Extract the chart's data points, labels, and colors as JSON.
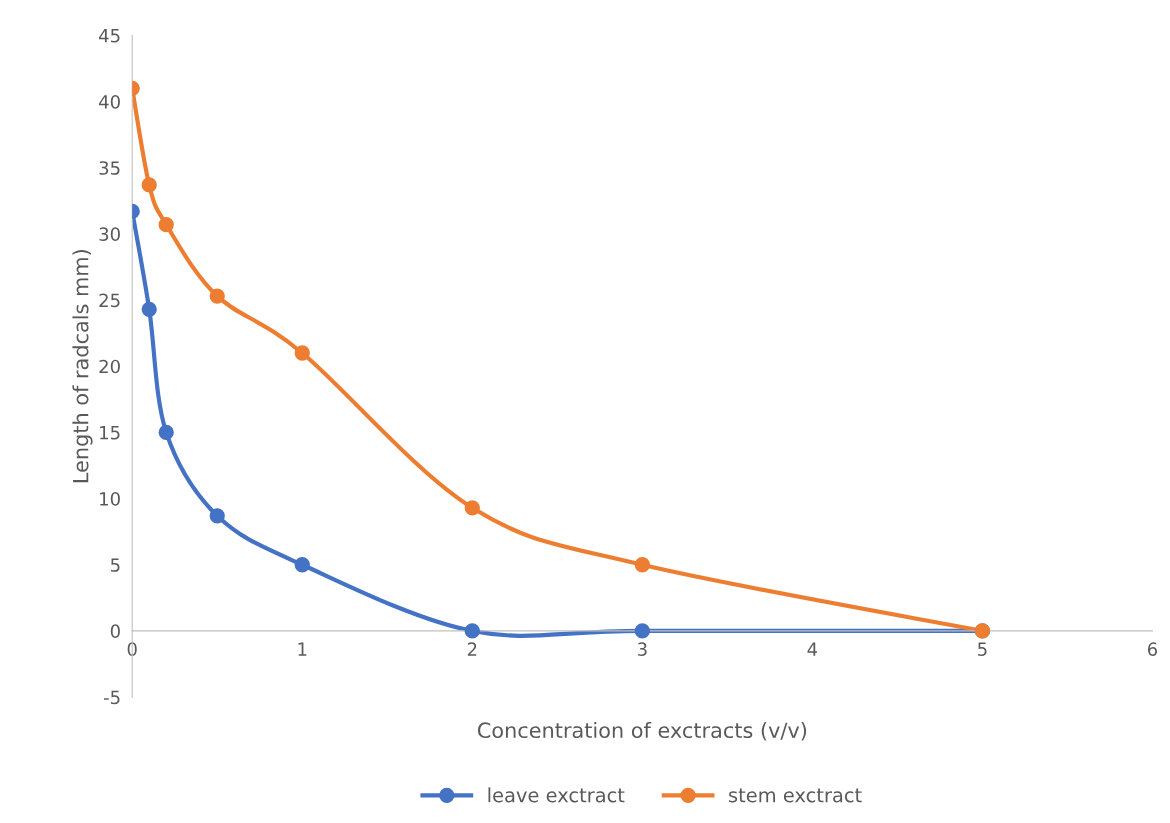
{
  "chart_data": {
    "type": "line",
    "xlabel": "Concentration of exctracts (v/v)",
    "ylabel": "Length of radcals mm)",
    "x": [
      0,
      0.1,
      0.2,
      0.5,
      1,
      2,
      3,
      5
    ],
    "series": [
      {
        "name": "leave exctract",
        "color": "#4472c4",
        "values": [
          31.7,
          24.3,
          15,
          8.7,
          5,
          0,
          0,
          0
        ]
      },
      {
        "name": "stem exctract",
        "color": "#ed7d31",
        "values": [
          41,
          33.7,
          30.7,
          25.3,
          21,
          9.3,
          5,
          0
        ]
      }
    ],
    "xlim": [
      0,
      6
    ],
    "xticks": [
      0,
      1,
      2,
      3,
      4,
      5,
      6
    ],
    "ylim": [
      -5,
      45
    ],
    "yticks": [
      -5,
      0,
      5,
      10,
      15,
      20,
      25,
      30,
      35,
      40,
      45
    ],
    "grid": false,
    "legend": "bottom",
    "marker": "circle",
    "line_style": "solid"
  }
}
